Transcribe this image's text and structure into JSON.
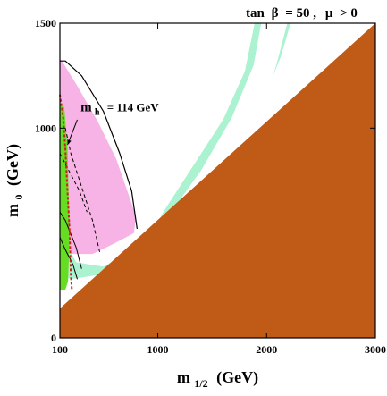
{
  "chart_data": {
    "type": "area",
    "title_prefix": "tan",
    "title_beta": "β",
    "title_beta_value": "= 50 ,",
    "title_mu": "μ",
    "title_mu_cond": "> 0",
    "xlabel_main": "m",
    "xlabel_sub": "1/2",
    "xlabel_unit": "(GeV)",
    "ylabel_main": "m",
    "ylabel_sub": "0",
    "ylabel_unit": "(GeV)",
    "xlim": [
      100,
      3000
    ],
    "ylim": [
      0,
      1500
    ],
    "x_ticks": [
      100,
      1000,
      2000,
      3000
    ],
    "y_ticks": [
      0,
      1000,
      1500
    ],
    "x_tick_labels": [
      "100",
      "1000",
      "2000",
      "3000"
    ],
    "y_tick_labels": [
      "0",
      "1000",
      "1500"
    ],
    "annotation_mh_main": "m",
    "annotation_mh_sub": "h",
    "annotation_mh_value": "= 114 GeV",
    "colors": {
      "excluded_stau": "#bf5b17",
      "cosmology_preferred": "#aaf2d0",
      "g_minus_2_pink": "#f7b3e6",
      "bsgamma_green": "#66dd22",
      "higgs_line": "#cc2222",
      "contour": "#000000"
    },
    "regions": {
      "stau_lsp_excluded": [
        [
          100,
          140
        ],
        [
          3000,
          1500
        ],
        [
          3000,
          0
        ],
        [
          100,
          0
        ]
      ],
      "cosmology_band_upper": [
        [
          1890,
          1500
        ],
        [
          1950,
          1500
        ],
        [
          1880,
          1300
        ],
        [
          1680,
          1050
        ],
        [
          1400,
          800
        ],
        [
          1150,
          620
        ],
        [
          1010,
          560
        ],
        [
          1050,
          600
        ],
        [
          1300,
          800
        ],
        [
          1600,
          1040
        ],
        [
          1800,
          1270
        ]
      ],
      "cosmology_band_lower": [
        [
          2190,
          1500
        ],
        [
          2220,
          1500
        ],
        [
          2130,
          1340
        ],
        [
          2060,
          1250
        ],
        [
          2100,
          1320
        ]
      ],
      "cosmology_funnel": [
        [
          100,
          600
        ],
        [
          130,
          480
        ],
        [
          250,
          360
        ],
        [
          500,
          340
        ],
        [
          760,
          410
        ],
        [
          720,
          360
        ],
        [
          450,
          300
        ],
        [
          200,
          280
        ],
        [
          100,
          300
        ]
      ],
      "g_minus_2_region": [
        [
          100,
          1330
        ],
        [
          130,
          1310
        ],
        [
          250,
          1210
        ],
        [
          450,
          1030
        ],
        [
          620,
          850
        ],
        [
          720,
          700
        ],
        [
          800,
          580
        ],
        [
          780,
          500
        ],
        [
          600,
          450
        ],
        [
          400,
          400
        ],
        [
          200,
          400
        ],
        [
          100,
          420
        ]
      ],
      "bsgamma_region": [
        [
          100,
          1110
        ],
        [
          140,
          1100
        ],
        [
          170,
          900
        ],
        [
          180,
          700
        ],
        [
          190,
          500
        ],
        [
          175,
          270
        ],
        [
          150,
          230
        ],
        [
          100,
          230
        ]
      ],
      "higgs_line": [
        [
          100,
          1160
        ],
        [
          130,
          1050
        ],
        [
          150,
          900
        ],
        [
          170,
          700
        ],
        [
          190,
          500
        ],
        [
          200,
          300
        ],
        [
          210,
          230
        ]
      ],
      "gminus2_outer_contour": [
        [
          100,
          1320
        ],
        [
          150,
          1320
        ],
        [
          300,
          1250
        ],
        [
          500,
          1080
        ],
        [
          650,
          880
        ],
        [
          760,
          700
        ],
        [
          810,
          520
        ]
      ],
      "gminus2_inner_dashed": [
        [
          150,
          1000
        ],
        [
          200,
          880
        ],
        [
          300,
          720
        ],
        [
          400,
          560
        ],
        [
          470,
          400
        ]
      ],
      "inner_contour_1": [
        [
          100,
          880
        ],
        [
          180,
          800
        ],
        [
          280,
          700
        ],
        [
          350,
          600
        ]
      ],
      "inner_contour_2": [
        [
          100,
          600
        ],
        [
          150,
          560
        ],
        [
          250,
          430
        ],
        [
          300,
          330
        ]
      ],
      "inner_contour_3": [
        [
          100,
          480
        ],
        [
          150,
          420
        ],
        [
          220,
          350
        ],
        [
          260,
          280
        ]
      ]
    }
  }
}
